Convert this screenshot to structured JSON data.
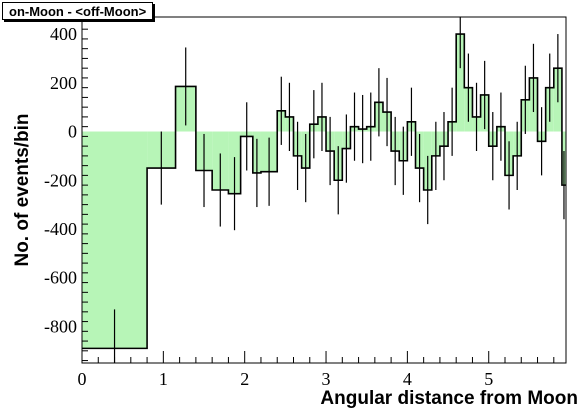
{
  "chart_data": {
    "type": "bar",
    "title": "on-Moon - <off-Moon>",
    "xlabel": "Angular distance from Moon",
    "ylabel": "No. of events/bin",
    "xlim": [
      0,
      5.95
    ],
    "ylim": [
      -950,
      470
    ],
    "x_ticks": [
      "0",
      "1",
      "2",
      "3",
      "4",
      "5"
    ],
    "y_ticks": [
      "-800",
      "-600",
      "-400",
      "-200",
      "0",
      "200",
      "400"
    ],
    "fill_color": "#b7f5b7",
    "bins": [
      {
        "x0": 0.0,
        "x1": 0.8,
        "value": -890,
        "err": 160,
        "xc": 0.4
      },
      {
        "x0": 0.8,
        "x1": 1.15,
        "value": -150,
        "err": 150
      },
      {
        "x0": 1.15,
        "x1": 1.4,
        "value": 185,
        "err": 160
      },
      {
        "x0": 1.4,
        "x1": 1.6,
        "value": -160,
        "err": 150
      },
      {
        "x0": 1.6,
        "x1": 1.8,
        "value": -240,
        "err": 150
      },
      {
        "x0": 1.8,
        "x1": 1.95,
        "value": -255,
        "err": 150
      },
      {
        "x0": 1.95,
        "x1": 2.1,
        "value": -20,
        "err": 140
      },
      {
        "x0": 2.1,
        "x1": 2.2,
        "value": -170,
        "err": 140
      },
      {
        "x0": 2.2,
        "x1": 2.4,
        "value": -165,
        "err": 140
      },
      {
        "x0": 2.4,
        "x1": 2.5,
        "value": 85,
        "err": 140
      },
      {
        "x0": 2.5,
        "x1": 2.6,
        "value": 60,
        "err": 140
      },
      {
        "x0": 2.6,
        "x1": 2.7,
        "value": -100,
        "err": 140
      },
      {
        "x0": 2.7,
        "x1": 2.8,
        "value": -150,
        "err": 140
      },
      {
        "x0": 2.8,
        "x1": 2.9,
        "value": 30,
        "err": 140
      },
      {
        "x0": 2.9,
        "x1": 3.0,
        "value": 60,
        "err": 140
      },
      {
        "x0": 3.0,
        "x1": 3.1,
        "value": -80,
        "err": 140
      },
      {
        "x0": 3.1,
        "x1": 3.2,
        "value": -200,
        "err": 140
      },
      {
        "x0": 3.2,
        "x1": 3.3,
        "value": -70,
        "err": 140
      },
      {
        "x0": 3.3,
        "x1": 3.4,
        "value": 20,
        "err": 140
      },
      {
        "x0": 3.4,
        "x1": 3.5,
        "value": 10,
        "err": 140
      },
      {
        "x0": 3.5,
        "x1": 3.6,
        "value": 20,
        "err": 140
      },
      {
        "x0": 3.6,
        "x1": 3.7,
        "value": 120,
        "err": 140
      },
      {
        "x0": 3.7,
        "x1": 3.8,
        "value": 80,
        "err": 140
      },
      {
        "x0": 3.8,
        "x1": 3.9,
        "value": -80,
        "err": 140
      },
      {
        "x0": 3.9,
        "x1": 4.0,
        "value": -120,
        "err": 140
      },
      {
        "x0": 4.0,
        "x1": 4.1,
        "value": 40,
        "err": 140
      },
      {
        "x0": 4.1,
        "x1": 4.2,
        "value": -150,
        "err": 140
      },
      {
        "x0": 4.2,
        "x1": 4.3,
        "value": -240,
        "err": 140
      },
      {
        "x0": 4.3,
        "x1": 4.4,
        "value": -100,
        "err": 140
      },
      {
        "x0": 4.4,
        "x1": 4.5,
        "value": -60,
        "err": 140
      },
      {
        "x0": 4.5,
        "x1": 4.6,
        "value": 40,
        "err": 140
      },
      {
        "x0": 4.6,
        "x1": 4.7,
        "value": 400,
        "err": 140
      },
      {
        "x0": 4.7,
        "x1": 4.8,
        "value": 180,
        "err": 140
      },
      {
        "x0": 4.8,
        "x1": 4.9,
        "value": 60,
        "err": 140
      },
      {
        "x0": 4.9,
        "x1": 5.0,
        "value": 150,
        "err": 140
      },
      {
        "x0": 5.0,
        "x1": 5.1,
        "value": -60,
        "err": 140
      },
      {
        "x0": 5.1,
        "x1": 5.2,
        "value": 20,
        "err": 140
      },
      {
        "x0": 5.2,
        "x1": 5.3,
        "value": -180,
        "err": 140
      },
      {
        "x0": 5.3,
        "x1": 5.4,
        "value": -100,
        "err": 140
      },
      {
        "x0": 5.4,
        "x1": 5.5,
        "value": 130,
        "err": 140
      },
      {
        "x0": 5.5,
        "x1": 5.6,
        "value": 220,
        "err": 140
      },
      {
        "x0": 5.6,
        "x1": 5.7,
        "value": -40,
        "err": 140
      },
      {
        "x0": 5.7,
        "x1": 5.8,
        "value": 180,
        "err": 140
      },
      {
        "x0": 5.8,
        "x1": 5.9,
        "value": 260,
        "err": 140
      },
      {
        "x0": 5.9,
        "x1": 5.95,
        "value": -220,
        "err": 140
      }
    ]
  }
}
